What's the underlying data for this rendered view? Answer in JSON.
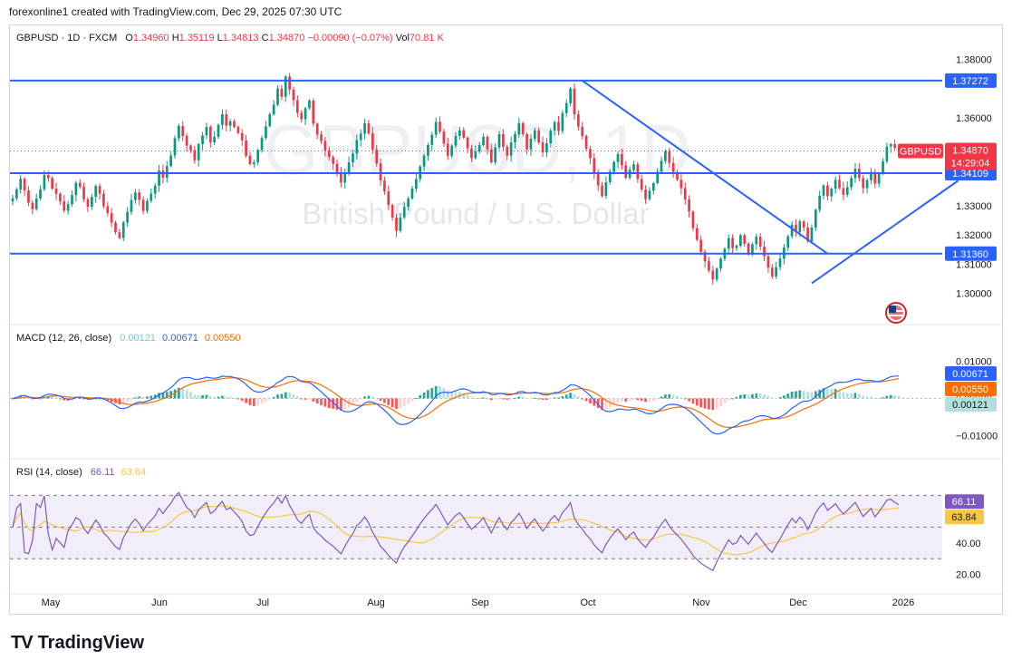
{
  "header": {
    "text": "forexonline1 created with TradingView.com, Dec 29, 2025 07:30 UTC"
  },
  "legend": {
    "symbol": "GBPUSD · 1D · FXCM",
    "open_k": "O",
    "open": "1.34960",
    "high_k": "H",
    "high": "1.35119",
    "low_k": "L",
    "low": "1.34813",
    "close_k": "C",
    "close": "1.34870",
    "change": "−0.00090 (−0.07%)",
    "vol_k": "Vol",
    "vol": "70.81 K"
  },
  "watermark": {
    "ticker": "GBPUSD, 1D",
    "name": "British Pound / U.S. Dollar"
  },
  "price_badge": {
    "symbol": "GBPUSD",
    "price": "1.34870",
    "countdown": "14:29:04"
  },
  "macd_legend": {
    "label": "MACD (12, 26, close)",
    "hist": "0.00121",
    "macd": "0.00671",
    "signal": "0.00550"
  },
  "rsi_legend": {
    "label": "RSI (14, close)",
    "rsi": "66.11",
    "ma": "63.84"
  },
  "footer": {
    "logo": "TV",
    "brand": "TradingView"
  },
  "colors": {
    "up": "#089981",
    "down": "#f23645",
    "line": "#2962ff",
    "signal": "#ff6d00",
    "rsi": "#7e57c2",
    "rsi_ma": "#f7c744"
  },
  "chart_data": [
    {
      "type": "candlestick",
      "symbol": "GBPUSD",
      "timeframe": "1D",
      "x_ticks": [
        "May",
        "Jun",
        "Jul",
        "Aug",
        "Sep",
        "Oct",
        "Nov",
        "Dec",
        "2026"
      ],
      "y_ticks": [
        "1.30000",
        "1.31000",
        "1.32000",
        "1.33000",
        "1.36000",
        "1.38000"
      ],
      "ylim": [
        1.2965,
        1.3829
      ],
      "last_price": 1.3487,
      "horizontal_lines": [
        {
          "value": 1.37272,
          "label": "1.37272"
        },
        {
          "value": 1.34109,
          "label": "1.34109"
        },
        {
          "value": 1.3136,
          "label": "1.31360"
        }
      ],
      "trendlines": [
        {
          "from": [
            "Sep 17",
            1.3727
          ],
          "to": [
            "Nov 25",
            1.3136
          ]
        },
        {
          "from": [
            "Nov 20",
            1.3035
          ],
          "to": [
            "Dec 26",
            1.3385
          ]
        }
      ],
      "closes": [
        1.3325,
        1.3355,
        1.3392,
        1.3352,
        1.331,
        1.3288,
        1.3325,
        1.3356,
        1.3405,
        1.3394,
        1.3358,
        1.334,
        1.3315,
        1.3283,
        1.3305,
        1.3336,
        1.3378,
        1.3365,
        1.3322,
        1.3296,
        1.333,
        1.3367,
        1.3341,
        1.3298,
        1.3275,
        1.3242,
        1.3209,
        1.319,
        1.3243,
        1.3278,
        1.3319,
        1.3345,
        1.332,
        1.3282,
        1.3316,
        1.3341,
        1.3368,
        1.342,
        1.3395,
        1.3435,
        1.3471,
        1.353,
        1.3572,
        1.3538,
        1.3505,
        1.349,
        1.3455,
        1.351,
        1.354,
        1.3569,
        1.3516,
        1.3535,
        1.3576,
        1.3612,
        1.3573,
        1.3588,
        1.3569,
        1.3548,
        1.3523,
        1.347,
        1.3442,
        1.3448,
        1.349,
        1.3531,
        1.3571,
        1.3612,
        1.3645,
        1.37,
        1.3672,
        1.3741,
        1.3696,
        1.366,
        1.3617,
        1.3595,
        1.3633,
        1.3659,
        1.358,
        1.3543,
        1.3521,
        1.3489,
        1.3466,
        1.3443,
        1.3412,
        1.3379,
        1.3414,
        1.3448,
        1.3478,
        1.3524,
        1.3546,
        1.3581,
        1.3547,
        1.3491,
        1.3444,
        1.3386,
        1.3349,
        1.3302,
        1.3259,
        1.3214,
        1.326,
        1.3296,
        1.3324,
        1.3358,
        1.3391,
        1.3434,
        1.3471,
        1.3507,
        1.3542,
        1.3586,
        1.3553,
        1.3512,
        1.347,
        1.3505,
        1.3538,
        1.3558,
        1.3532,
        1.3496,
        1.3463,
        1.3485,
        1.3507,
        1.3535,
        1.3492,
        1.3448,
        1.3499,
        1.3544,
        1.3501,
        1.3471,
        1.3516,
        1.3544,
        1.3582,
        1.3544,
        1.3492,
        1.3529,
        1.3557,
        1.3516,
        1.3482,
        1.3513,
        1.3556,
        1.3585,
        1.3555,
        1.3616,
        1.365,
        1.37,
        1.3612,
        1.357,
        1.3538,
        1.3494,
        1.3462,
        1.3411,
        1.3369,
        1.3333,
        1.338,
        1.3416,
        1.3449,
        1.3476,
        1.3438,
        1.3395,
        1.3422,
        1.3441,
        1.3391,
        1.3355,
        1.3322,
        1.3351,
        1.3377,
        1.3416,
        1.3453,
        1.3486,
        1.3446,
        1.3415,
        1.3388,
        1.336,
        1.3321,
        1.328,
        1.3223,
        1.3183,
        1.3142,
        1.311,
        1.3078,
        1.3048,
        1.3085,
        1.3119,
        1.3153,
        1.3189,
        1.3155,
        1.3163,
        1.3199,
        1.317,
        1.3139,
        1.3168,
        1.3194,
        1.316,
        1.3127,
        1.3088,
        1.3058,
        1.309,
        1.3119,
        1.3157,
        1.3195,
        1.3235,
        1.321,
        1.3246,
        1.3225,
        1.3178,
        1.3225,
        1.3286,
        1.3334,
        1.3369,
        1.3332,
        1.3358,
        1.3388,
        1.336,
        1.3337,
        1.3363,
        1.3394,
        1.3426,
        1.3394,
        1.336,
        1.3387,
        1.3415,
        1.3375,
        1.341,
        1.3451,
        1.3502,
        1.351,
        1.3497,
        1.3487
      ],
      "macd_panel": {
        "y_ticks": [
          "0.01000",
          "0.00000",
          "−0.01000"
        ],
        "ylim": [
          -0.0136,
          0.0126
        ],
        "hist_last": 0.00121,
        "macd_last": 0.00671,
        "signal_last": 0.0055
      },
      "rsi_panel": {
        "y_ticks": [
          "20.00",
          "40.00"
        ],
        "ylim": [
          16.4,
          79.4
        ],
        "levels": [
          70,
          30,
          50
        ],
        "rsi_last": 66.11,
        "ma_last": 63.84
      }
    }
  ]
}
